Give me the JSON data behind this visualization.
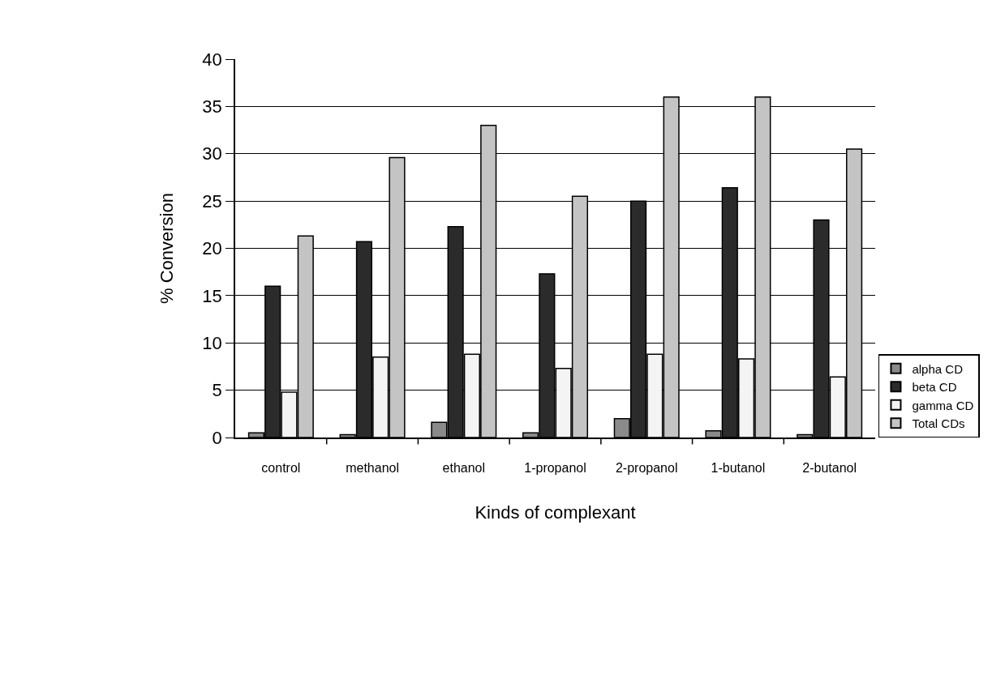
{
  "chart_data": {
    "type": "bar",
    "xlabel": "Kinds of complexant",
    "ylabel": "% Conversion",
    "categories": [
      "control",
      "methanol",
      "ethanol",
      "1-propanol",
      "2-propanol",
      "1-butanol",
      "2-butanol"
    ],
    "series": [
      {
        "name": "alpha CD",
        "color": "#8a8a8a",
        "values": [
          0.5,
          0.3,
          1.6,
          0.5,
          2.0,
          0.7,
          0.3
        ]
      },
      {
        "name": "beta CD",
        "color": "#2b2b2b",
        "values": [
          16.0,
          20.7,
          22.3,
          17.3,
          25.0,
          26.4,
          23.0
        ]
      },
      {
        "name": "gamma CD",
        "color": "#f4f4f4",
        "values": [
          4.8,
          8.5,
          8.8,
          7.3,
          8.8,
          8.3,
          6.4
        ]
      },
      {
        "name": "Total CDs",
        "color": "#c4c4c4",
        "values": [
          21.3,
          29.6,
          33.0,
          25.5,
          36.0,
          36.0,
          30.5
        ]
      }
    ],
    "ylim": [
      0,
      40
    ],
    "yticks": [
      0,
      5,
      10,
      15,
      20,
      25,
      30,
      35,
      40
    ],
    "grid": "y",
    "legend": "right"
  }
}
